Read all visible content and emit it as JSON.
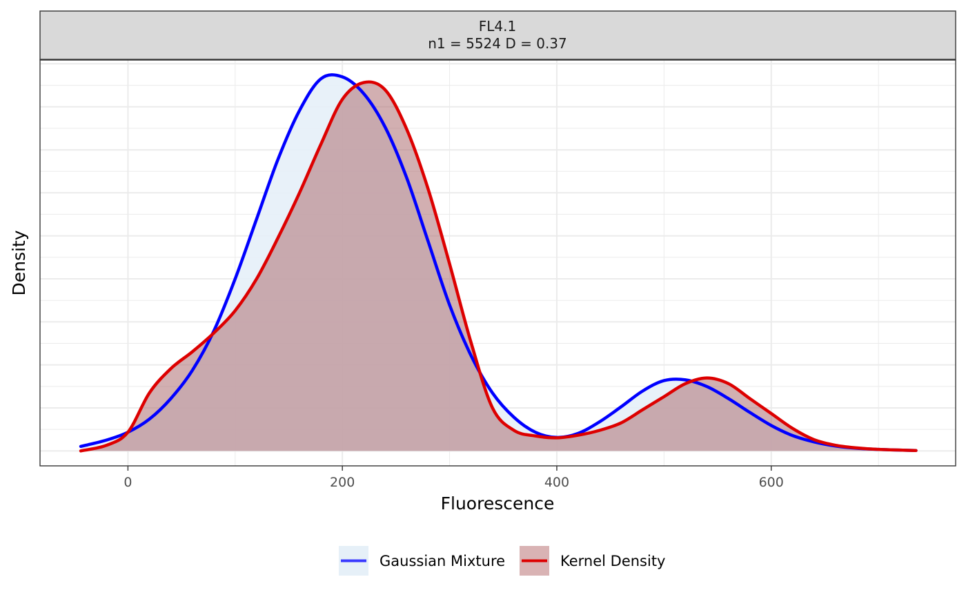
{
  "chart_data": {
    "type": "area",
    "facet": {
      "title_line1": "FL4.1",
      "title_line2": "n1 = 5524 D = 0.37"
    },
    "xlabel": "Fluorescence",
    "ylabel": "Density",
    "xlim": [
      -82,
      772
    ],
    "ylim": [
      -0.04,
      1.045
    ],
    "x_ticks": [
      0,
      200,
      400,
      600
    ],
    "x_tick_labels": [
      "0",
      "200",
      "400",
      "600"
    ],
    "y_tick_labels_shown": false,
    "grid": true,
    "legend_position": "bottom",
    "x": [
      -44,
      -20,
      0,
      20,
      40,
      60,
      80,
      100,
      120,
      140,
      160,
      180,
      200,
      220,
      240,
      260,
      280,
      300,
      320,
      340,
      360,
      380,
      400,
      420,
      440,
      460,
      480,
      500,
      520,
      540,
      560,
      580,
      600,
      620,
      640,
      660,
      680,
      700,
      735
    ],
    "series": [
      {
        "name": "Gaussian Mixture",
        "color": "#0000ff",
        "fill": "#e6f0f8",
        "fill_opacity": 0.9,
        "values": [
          0.012,
          0.029,
          0.05,
          0.085,
          0.14,
          0.215,
          0.32,
          0.46,
          0.62,
          0.78,
          0.91,
          0.995,
          1.0,
          0.955,
          0.865,
          0.73,
          0.56,
          0.39,
          0.255,
          0.155,
          0.09,
          0.05,
          0.036,
          0.047,
          0.078,
          0.118,
          0.16,
          0.188,
          0.19,
          0.172,
          0.14,
          0.103,
          0.068,
          0.041,
          0.024,
          0.013,
          0.007,
          0.004,
          0.001
        ]
      },
      {
        "name": "Kernel Density",
        "color": "#dd0000",
        "fill": "#ad6e71",
        "fill_opacity": 0.55,
        "values": [
          0.0,
          0.015,
          0.05,
          0.155,
          0.22,
          0.265,
          0.315,
          0.375,
          0.46,
          0.57,
          0.69,
          0.82,
          0.94,
          0.985,
          0.965,
          0.86,
          0.7,
          0.5,
          0.29,
          0.115,
          0.055,
          0.04,
          0.035,
          0.042,
          0.055,
          0.075,
          0.11,
          0.145,
          0.18,
          0.195,
          0.18,
          0.14,
          0.1,
          0.06,
          0.03,
          0.015,
          0.008,
          0.004,
          0.001
        ]
      }
    ]
  }
}
